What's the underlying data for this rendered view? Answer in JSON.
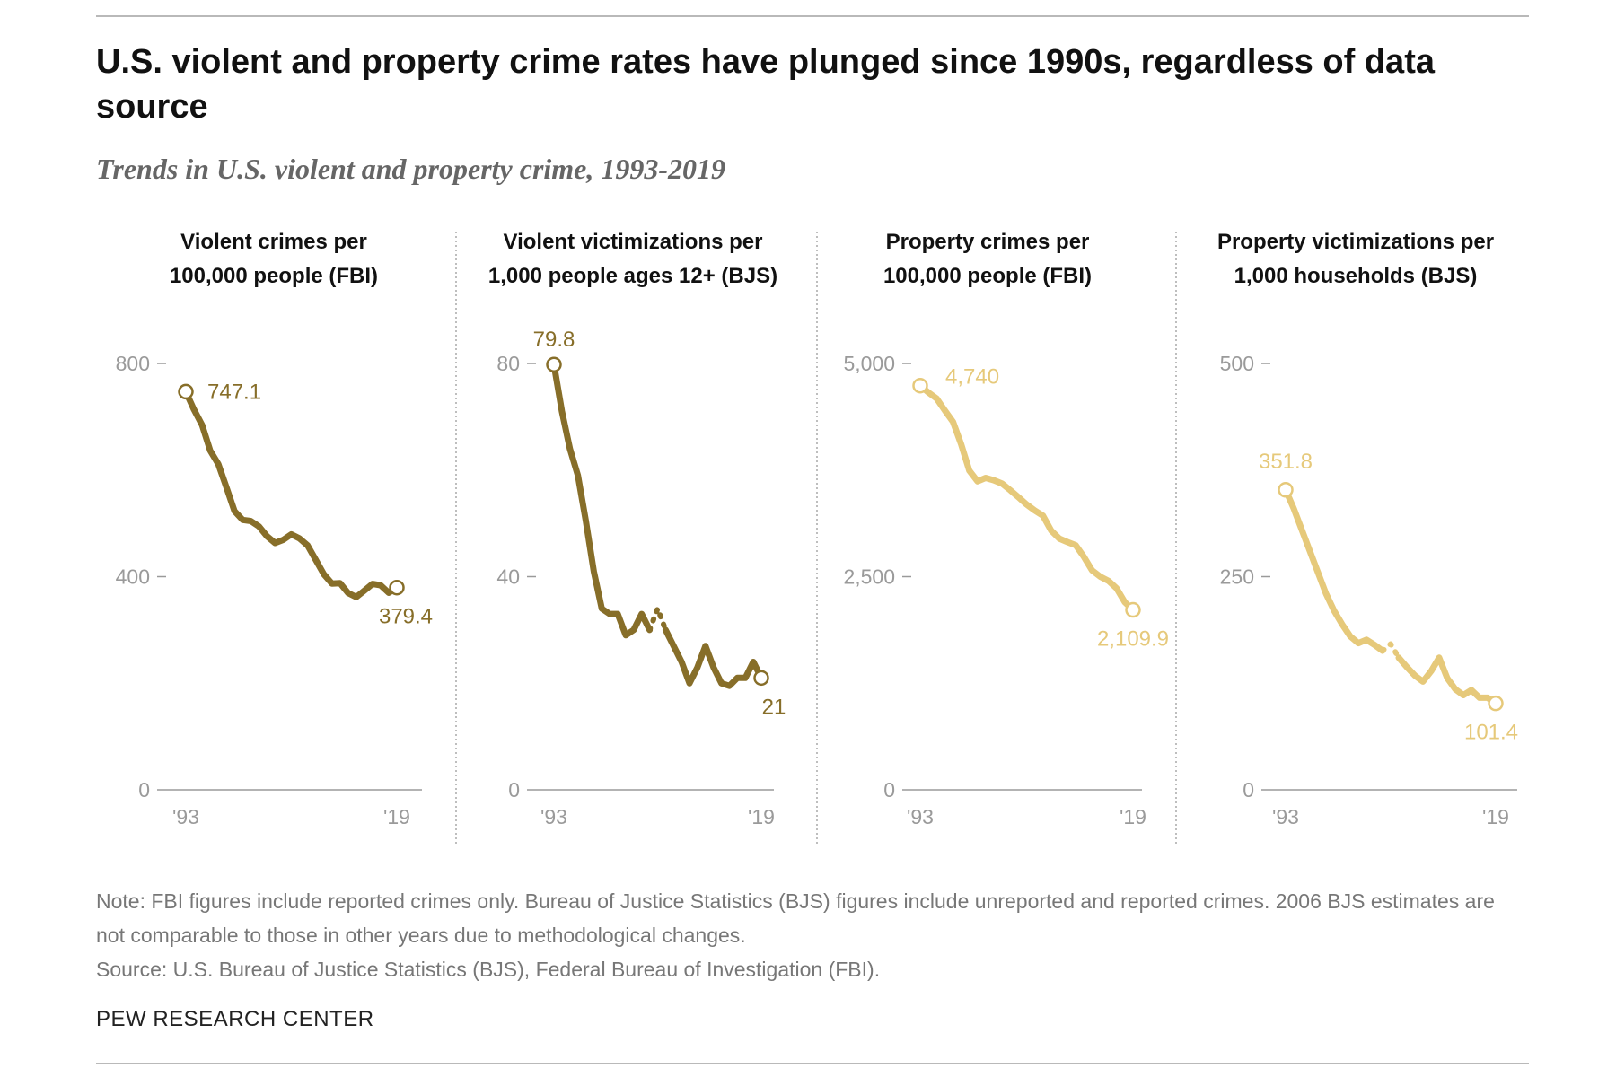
{
  "header": {
    "title": "U.S. violent and property crime rates have plunged since 1990s, regardless of data source",
    "subtitle": "Trends in U.S. violent and property crime, 1993-2019"
  },
  "footer": {
    "note": "Note: FBI figures include reported crimes only. Bureau of Justice Statistics (BJS) figures include unreported and reported crimes. 2006 BJS estimates are not comparable to those in other years due to methodological changes.",
    "source": "Source: U.S. Bureau of Justice Statistics (BJS), Federal Bureau of Investigation (FBI).",
    "brand": "PEW RESEARCH CENTER"
  },
  "chart_data": [
    {
      "type": "line",
      "title": "Violent crimes per 100,000 people (FBI)",
      "title_lines": [
        "Violent crimes per",
        "100,000 people (FBI)"
      ],
      "color": "#876e29",
      "x": [
        1993,
        1994,
        1995,
        1996,
        1997,
        1998,
        1999,
        2000,
        2001,
        2002,
        2003,
        2004,
        2005,
        2006,
        2007,
        2008,
        2009,
        2010,
        2011,
        2012,
        2013,
        2014,
        2015,
        2016,
        2017,
        2018,
        2019
      ],
      "values": [
        747.1,
        713.6,
        684.5,
        636.6,
        611.0,
        567.6,
        523.0,
        506.5,
        504.5,
        494.4,
        475.8,
        463.2,
        469.0,
        479.3,
        471.8,
        458.6,
        431.9,
        404.5,
        387.1,
        387.8,
        369.1,
        361.6,
        373.7,
        386.3,
        383.8,
        369.9,
        379.4
      ],
      "ylim": [
        0,
        800
      ],
      "yticks": [
        "800",
        "400",
        "0"
      ],
      "ytick_values": [
        800,
        400,
        0
      ],
      "xticks": [
        "'93",
        "'19"
      ],
      "start_label": "747.1",
      "end_label": "379.4",
      "break_after": null
    },
    {
      "type": "line",
      "title": "Violent victimizations per 1,000 people ages 12+ (BJS)",
      "title_lines": [
        "Violent victimizations per",
        "1,000 people ages 12+ (BJS)"
      ],
      "color": "#876e29",
      "x": [
        1993,
        1994,
        1995,
        1996,
        1997,
        1998,
        1999,
        2000,
        2001,
        2002,
        2003,
        2004,
        2005,
        2006,
        2007,
        2008,
        2009,
        2010,
        2011,
        2012,
        2013,
        2014,
        2015,
        2016,
        2017,
        2018,
        2019
      ],
      "values": [
        79.8,
        71.0,
        64.0,
        59.0,
        50.5,
        41.0,
        34.0,
        33.0,
        33.0,
        29.0,
        30.0,
        33.0,
        30.0,
        34.0,
        30.0,
        27.0,
        24.0,
        20.0,
        23.0,
        27.0,
        23.0,
        20.0,
        19.5,
        21.0,
        21.0,
        24.0,
        21.0
      ],
      "ylim": [
        0,
        80
      ],
      "yticks": [
        "80",
        "40",
        "0"
      ],
      "ytick_values": [
        80,
        40,
        0
      ],
      "xticks": [
        "'93",
        "'19"
      ],
      "start_label": "79.8",
      "end_label": "21",
      "break_after": 2005,
      "break_year": 2006
    },
    {
      "type": "line",
      "title": "Property crimes per 100,000 people (FBI)",
      "title_lines": [
        "Property crimes per",
        "100,000 people (FBI)"
      ],
      "color": "#e6c97a",
      "x": [
        1993,
        1994,
        1995,
        1996,
        1997,
        1998,
        1999,
        2000,
        2001,
        2002,
        2003,
        2004,
        2005,
        2006,
        2007,
        2008,
        2009,
        2010,
        2011,
        2012,
        2013,
        2014,
        2015,
        2016,
        2017,
        2018,
        2019
      ],
      "values": [
        4740,
        4660,
        4591,
        4451,
        4316,
        4052,
        3743,
        3618,
        3658,
        3631,
        3591,
        3514,
        3432,
        3346,
        3276,
        3215,
        3041,
        2946,
        2905,
        2868,
        2733,
        2574,
        2500,
        2451,
        2362,
        2200,
        2109.9
      ],
      "ylim": [
        0,
        5000
      ],
      "yticks": [
        "5,000",
        "2,500",
        "0"
      ],
      "ytick_values": [
        5000,
        2500,
        0
      ],
      "xticks": [
        "'93",
        "'19"
      ],
      "start_label": "4,740",
      "end_label": "2,109.9",
      "break_after": null
    },
    {
      "type": "line",
      "title": "Property victimizations per 1,000 households (BJS)",
      "title_lines": [
        "Property victimizations per",
        "1,000 households (BJS)"
      ],
      "color": "#e6c97a",
      "x": [
        1993,
        1994,
        1995,
        1996,
        1997,
        1998,
        1999,
        2000,
        2001,
        2002,
        2003,
        2004,
        2005,
        2006,
        2007,
        2008,
        2009,
        2010,
        2011,
        2012,
        2013,
        2014,
        2015,
        2016,
        2017,
        2018,
        2019
      ],
      "values": [
        351.8,
        330.0,
        305.0,
        280.0,
        255.0,
        230.0,
        210.0,
        194.0,
        180.0,
        172.0,
        176.0,
        170.0,
        163.0,
        171.0,
        155.0,
        144.0,
        134.0,
        127.0,
        139.0,
        155.0,
        131.0,
        118.0,
        111.0,
        117.0,
        108.0,
        108.0,
        101.4
      ],
      "ylim": [
        0,
        500
      ],
      "yticks": [
        "500",
        "250",
        "0"
      ],
      "ytick_values": [
        500,
        250,
        0
      ],
      "xticks": [
        "'93",
        "'19"
      ],
      "start_label": "351.8",
      "end_label": "101.4",
      "break_after": 2005,
      "break_year": 2006
    }
  ]
}
